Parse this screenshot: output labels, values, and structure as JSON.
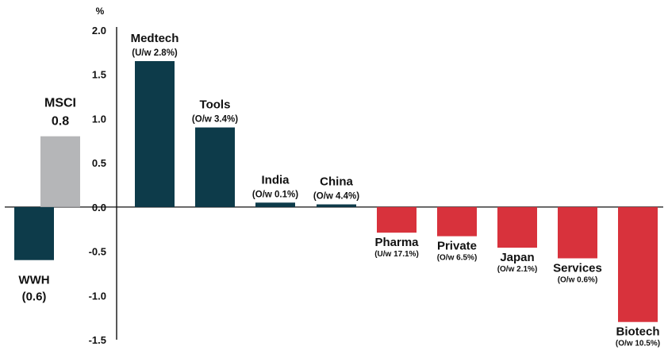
{
  "chart_data": {
    "type": "bar",
    "y_unit": "%",
    "ylim": [
      -1.5,
      2.0
    ],
    "yticks": [
      "2.0",
      "1.5",
      "1.0",
      "0.5",
      "0.0",
      "-0.5",
      "-1.0",
      "-1.5"
    ],
    "grid": false,
    "colors": {
      "dark": "#0d3b4a",
      "gray": "#b5b6b8",
      "red": "#d8323c",
      "msci_text": "#a6a7a9",
      "text": "#111111"
    },
    "bars": [
      {
        "category": "WWH",
        "value": -0.6,
        "color": "dark",
        "label_lines": [
          "WWH",
          "(0.6)"
        ]
      },
      {
        "category": "MSCI",
        "value": 0.8,
        "color": "gray",
        "label_lines": [
          "MSCI",
          "0.8"
        ]
      },
      {
        "category": "Medtech",
        "value": 1.65,
        "color": "dark",
        "label_lines": [
          "Medtech",
          "(U/w 2.8%)"
        ]
      },
      {
        "category": "Tools",
        "value": 0.9,
        "color": "dark",
        "label_lines": [
          "Tools",
          "(O/w 3.4%)"
        ]
      },
      {
        "category": "India",
        "value": 0.05,
        "color": "dark",
        "label_lines": [
          "India",
          "(O/w 0.1%)"
        ]
      },
      {
        "category": "China",
        "value": 0.03,
        "color": "dark",
        "label_lines": [
          "China",
          "(O/w 4.4%)"
        ]
      },
      {
        "category": "Pharma",
        "value": -0.29,
        "color": "red",
        "label_lines": [
          "Pharma",
          "(U/w 17.1%)"
        ]
      },
      {
        "category": "Private",
        "value": -0.33,
        "color": "red",
        "label_lines": [
          "Private",
          "(O/w 6.5%)"
        ]
      },
      {
        "category": "Japan",
        "value": -0.46,
        "color": "red",
        "label_lines": [
          "Japan",
          "(O/w 2.1%)"
        ]
      },
      {
        "category": "Services",
        "value": -0.58,
        "color": "red",
        "label_lines": [
          "Services",
          "(O/w 0.6%)"
        ]
      },
      {
        "category": "Biotech",
        "value": -1.3,
        "color": "red",
        "label_lines": [
          "Biotech",
          "(O/w 10.5%)"
        ]
      }
    ]
  }
}
